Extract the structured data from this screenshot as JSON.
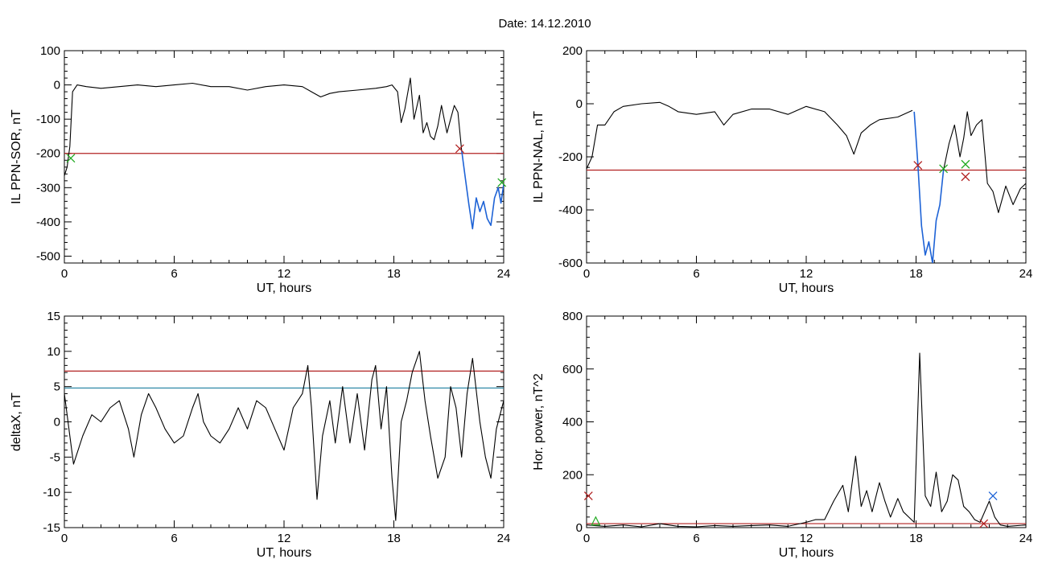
{
  "title": "Date:  14.12.2010",
  "colors": {
    "trace": "#000000",
    "threshold_red": "#b22222",
    "threshold_blue": "#1f7fa0",
    "highlight_blue": "#1e63d6",
    "marker_red": "#b22222",
    "marker_green": "#22aa22",
    "marker_blue": "#1e63d6"
  },
  "chart_data": [
    {
      "type": "line",
      "xlabel": "UT, hours",
      "ylabel": "IL PPN-SOR, nT",
      "xlim": [
        0,
        24
      ],
      "ylim": [
        -520,
        100
      ],
      "xticks": [
        0,
        6,
        12,
        18,
        24
      ],
      "yticks": [
        100,
        0,
        -100,
        -200,
        -300,
        -400,
        -500
      ],
      "threshold": -200,
      "series": [
        {
          "values": [
            [
              0,
              -265
            ],
            [
              0.15,
              -240
            ],
            [
              0.3,
              -180
            ],
            [
              0.45,
              -20
            ],
            [
              0.7,
              0
            ],
            [
              1.2,
              -5
            ],
            [
              2,
              -10
            ],
            [
              3,
              -5
            ],
            [
              4,
              0
            ],
            [
              5,
              -5
            ],
            [
              6,
              0
            ],
            [
              7,
              5
            ],
            [
              8,
              -5
            ],
            [
              9,
              -5
            ],
            [
              10,
              -15
            ],
            [
              11,
              -5
            ],
            [
              12,
              0
            ],
            [
              13,
              -5
            ],
            [
              13.5,
              -20
            ],
            [
              14,
              -35
            ],
            [
              14.5,
              -25
            ],
            [
              15,
              -20
            ],
            [
              16,
              -15
            ],
            [
              17,
              -10
            ],
            [
              17.6,
              -5
            ],
            [
              17.9,
              0
            ],
            [
              18.2,
              -20
            ],
            [
              18.4,
              -110
            ],
            [
              18.6,
              -70
            ],
            [
              18.9,
              20
            ],
            [
              19.1,
              -100
            ],
            [
              19.4,
              -30
            ],
            [
              19.6,
              -140
            ],
            [
              19.8,
              -110
            ],
            [
              20,
              -150
            ],
            [
              20.2,
              -160
            ],
            [
              20.4,
              -120
            ],
            [
              20.6,
              -60
            ],
            [
              20.9,
              -140
            ],
            [
              21.1,
              -100
            ],
            [
              21.3,
              -60
            ],
            [
              21.5,
              -80
            ],
            [
              21.7,
              -190
            ]
          ],
          "highlight": [
            [
              21.7,
              -190
            ],
            [
              21.9,
              -270
            ],
            [
              22.1,
              -350
            ],
            [
              22.3,
              -420
            ],
            [
              22.5,
              -330
            ],
            [
              22.7,
              -370
            ],
            [
              22.9,
              -340
            ],
            [
              23.1,
              -390
            ],
            [
              23.3,
              -410
            ],
            [
              23.5,
              -330
            ],
            [
              23.7,
              -300
            ],
            [
              23.85,
              -345
            ],
            [
              24,
              -290
            ]
          ]
        }
      ],
      "markers": [
        {
          "symbol": "x",
          "color": "red",
          "x": 21.6,
          "y": -186
        },
        {
          "symbol": "x",
          "color": "green",
          "x": 0.35,
          "y": -214
        },
        {
          "symbol": "x",
          "color": "green",
          "x": 23.9,
          "y": -285
        }
      ]
    },
    {
      "type": "line",
      "xlabel": "UT, hours",
      "ylabel": "IL PPN-NAL, nT",
      "xlim": [
        0,
        24
      ],
      "ylim": [
        -600,
        200
      ],
      "xticks": [
        0,
        6,
        12,
        18,
        24
      ],
      "yticks": [
        200,
        0,
        -200,
        -400,
        -600
      ],
      "threshold": -250,
      "series": [
        {
          "values": [
            [
              0,
              -245
            ],
            [
              0.3,
              -200
            ],
            [
              0.6,
              -80
            ],
            [
              1,
              -80
            ],
            [
              1.5,
              -30
            ],
            [
              2,
              -10
            ],
            [
              3,
              0
            ],
            [
              4,
              5
            ],
            [
              4.5,
              -10
            ],
            [
              5,
              -30
            ],
            [
              6,
              -40
            ],
            [
              7,
              -30
            ],
            [
              7.5,
              -80
            ],
            [
              8,
              -40
            ],
            [
              9,
              -20
            ],
            [
              10,
              -20
            ],
            [
              11,
              -40
            ],
            [
              12,
              -10
            ],
            [
              13,
              -30
            ],
            [
              13.7,
              -80
            ],
            [
              14.2,
              -120
            ],
            [
              14.6,
              -190
            ],
            [
              15,
              -110
            ],
            [
              15.5,
              -80
            ],
            [
              16,
              -60
            ],
            [
              17,
              -50
            ],
            [
              17.8,
              -25
            ]
          ],
          "highlight": [
            [
              17.9,
              -30
            ],
            [
              18.1,
              -230
            ],
            [
              18.3,
              -460
            ],
            [
              18.5,
              -570
            ],
            [
              18.7,
              -520
            ],
            [
              18.9,
              -600
            ],
            [
              19.1,
              -440
            ],
            [
              19.3,
              -380
            ],
            [
              19.5,
              -250
            ]
          ]
        },
        {
          "values": [
            [
              19.5,
              -250
            ],
            [
              19.8,
              -150
            ],
            [
              20.1,
              -80
            ],
            [
              20.4,
              -200
            ],
            [
              20.6,
              -130
            ],
            [
              20.8,
              -30
            ],
            [
              21,
              -120
            ],
            [
              21.3,
              -80
            ],
            [
              21.6,
              -60
            ],
            [
              21.9,
              -300
            ],
            [
              22.2,
              -330
            ],
            [
              22.5,
              -410
            ],
            [
              22.9,
              -310
            ],
            [
              23.3,
              -380
            ],
            [
              23.7,
              -320
            ],
            [
              24,
              -300
            ]
          ]
        }
      ],
      "markers": [
        {
          "symbol": "x",
          "color": "red",
          "x": 18.1,
          "y": -232
        },
        {
          "symbol": "x",
          "color": "red",
          "x": 20.7,
          "y": -275
        },
        {
          "symbol": "x",
          "color": "green",
          "x": 19.5,
          "y": -245
        },
        {
          "symbol": "x",
          "color": "green",
          "x": 20.7,
          "y": -228
        }
      ]
    },
    {
      "type": "line",
      "xlabel": "UT, hours",
      "ylabel": "deltaX, nT",
      "xlim": [
        0,
        24
      ],
      "ylim": [
        -15,
        15
      ],
      "xticks": [
        0,
        6,
        12,
        18,
        24
      ],
      "yticks": [
        15,
        10,
        5,
        0,
        -5,
        -10,
        -15
      ],
      "thresholds": [
        {
          "value": 7.2,
          "color": "red"
        },
        {
          "value": 4.8,
          "color": "blue"
        }
      ],
      "series": [
        {
          "values": [
            [
              0,
              4
            ],
            [
              0.3,
              -2
            ],
            [
              0.5,
              -6
            ],
            [
              1,
              -2
            ],
            [
              1.5,
              1
            ],
            [
              2,
              0
            ],
            [
              2.5,
              2
            ],
            [
              3,
              3
            ],
            [
              3.5,
              -1
            ],
            [
              3.8,
              -5
            ],
            [
              4.2,
              1
            ],
            [
              4.6,
              4
            ],
            [
              5,
              2
            ],
            [
              5.5,
              -1
            ],
            [
              6,
              -3
            ],
            [
              6.5,
              -2
            ],
            [
              7,
              2
            ],
            [
              7.3,
              4
            ],
            [
              7.6,
              0
            ],
            [
              8,
              -2
            ],
            [
              8.5,
              -3
            ],
            [
              9,
              -1
            ],
            [
              9.5,
              2
            ],
            [
              10,
              -1
            ],
            [
              10.5,
              3
            ],
            [
              11,
              2
            ],
            [
              11.5,
              -1
            ],
            [
              12,
              -4
            ],
            [
              12.5,
              2
            ],
            [
              13,
              4
            ],
            [
              13.3,
              8
            ],
            [
              13.5,
              2
            ],
            [
              13.8,
              -11
            ],
            [
              14.1,
              -2
            ],
            [
              14.5,
              3
            ],
            [
              14.8,
              -3
            ],
            [
              15.2,
              5
            ],
            [
              15.6,
              -3
            ],
            [
              16,
              4
            ],
            [
              16.4,
              -4
            ],
            [
              16.8,
              6
            ],
            [
              17,
              8
            ],
            [
              17.3,
              -1
            ],
            [
              17.6,
              5
            ],
            [
              17.9,
              -8
            ],
            [
              18.1,
              -14
            ],
            [
              18.4,
              0
            ],
            [
              18.7,
              3
            ],
            [
              19,
              7
            ],
            [
              19.4,
              10
            ],
            [
              19.7,
              3
            ],
            [
              20,
              -2
            ],
            [
              20.4,
              -8
            ],
            [
              20.8,
              -5
            ],
            [
              21.1,
              5
            ],
            [
              21.4,
              2
            ],
            [
              21.7,
              -5
            ],
            [
              22,
              4
            ],
            [
              22.3,
              9
            ],
            [
              22.7,
              0
            ],
            [
              23,
              -5
            ],
            [
              23.3,
              -8
            ],
            [
              23.6,
              -1
            ],
            [
              24,
              3
            ]
          ]
        }
      ],
      "markers": []
    },
    {
      "type": "line",
      "xlabel": "UT, hours",
      "ylabel": "Hor. power, nT^2",
      "xlim": [
        0,
        24
      ],
      "ylim": [
        0,
        800
      ],
      "xticks": [
        0,
        6,
        12,
        18,
        24
      ],
      "yticks": [
        800,
        600,
        400,
        200,
        0
      ],
      "threshold": 15,
      "series": [
        {
          "values": [
            [
              0,
              10
            ],
            [
              1,
              5
            ],
            [
              2,
              10
            ],
            [
              3,
              3
            ],
            [
              4,
              15
            ],
            [
              5,
              5
            ],
            [
              6,
              3
            ],
            [
              7,
              8
            ],
            [
              8,
              5
            ],
            [
              9,
              8
            ],
            [
              10,
              10
            ],
            [
              11,
              5
            ],
            [
              12,
              20
            ],
            [
              12.5,
              30
            ],
            [
              13,
              30
            ],
            [
              13.5,
              100
            ],
            [
              14,
              160
            ],
            [
              14.3,
              60
            ],
            [
              14.7,
              270
            ],
            [
              15,
              80
            ],
            [
              15.3,
              140
            ],
            [
              15.6,
              60
            ],
            [
              16,
              170
            ],
            [
              16.3,
              100
            ],
            [
              16.6,
              40
            ],
            [
              17,
              110
            ],
            [
              17.3,
              60
            ],
            [
              17.6,
              40
            ],
            [
              17.9,
              20
            ],
            [
              18.2,
              660
            ],
            [
              18.5,
              120
            ],
            [
              18.8,
              80
            ],
            [
              19.1,
              210
            ],
            [
              19.4,
              60
            ],
            [
              19.7,
              100
            ],
            [
              20,
              200
            ],
            [
              20.3,
              180
            ],
            [
              20.6,
              80
            ],
            [
              20.9,
              60
            ],
            [
              21.2,
              30
            ],
            [
              21.5,
              20
            ],
            [
              22,
              100
            ],
            [
              22.3,
              40
            ],
            [
              22.6,
              10
            ],
            [
              23,
              5
            ],
            [
              24,
              10
            ]
          ]
        }
      ],
      "markers": [
        {
          "symbol": "x",
          "color": "red",
          "x": 0.1,
          "y": 120
        },
        {
          "symbol": "x",
          "color": "blue",
          "x": 22.2,
          "y": 120
        },
        {
          "symbol": "triangle",
          "color": "green",
          "x": 0.5,
          "y": 25
        },
        {
          "symbol": "x",
          "color": "red",
          "x": 21.7,
          "y": 15
        }
      ]
    }
  ]
}
